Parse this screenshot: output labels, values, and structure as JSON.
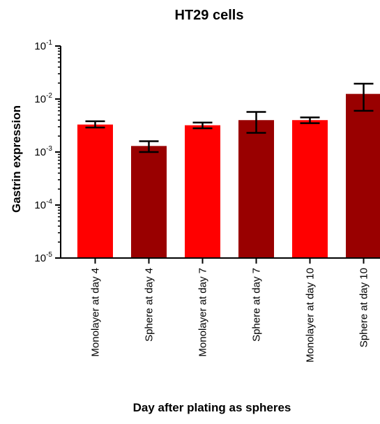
{
  "chart_data": {
    "type": "bar",
    "title": "HT29 cells",
    "xlabel": "Day after plating as spheres",
    "ylabel": "Gastrin expression",
    "yscale": "log",
    "ylim": [
      1e-05,
      0.1
    ],
    "yticks": [
      {
        "value": 0.1,
        "base": "10",
        "exp": "-1"
      },
      {
        "value": 0.01,
        "base": "10",
        "exp": "-2"
      },
      {
        "value": 0.001,
        "base": "10",
        "exp": "-3"
      },
      {
        "value": 0.0001,
        "base": "10",
        "exp": "-4"
      },
      {
        "value": 1e-05,
        "base": "10",
        "exp": "-5"
      }
    ],
    "categories": [
      "Monolayer at day 4",
      "Sphere at day 4",
      "Monolayer at day 7",
      "Sphere at day 7",
      "Monolayer at day 10",
      "Sphere at day 10"
    ],
    "values": [
      0.0033,
      0.0013,
      0.0032,
      0.004,
      0.004,
      0.0125
    ],
    "error_low": [
      0.0029,
      0.001,
      0.0028,
      0.0023,
      0.0035,
      0.006
    ],
    "error_high": [
      0.0038,
      0.0016,
      0.0036,
      0.0057,
      0.0045,
      0.0195
    ],
    "colors": [
      "#ff0000",
      "#990000",
      "#ff0000",
      "#990000",
      "#ff0000",
      "#990000"
    ],
    "grid": false,
    "legend": "none"
  }
}
